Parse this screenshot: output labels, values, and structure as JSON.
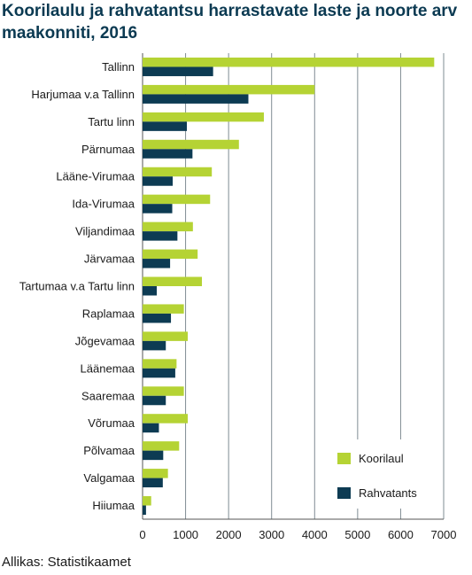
{
  "chart_data": {
    "type": "bar",
    "orientation": "horizontal",
    "title": "Koorilaulu ja rahvatantsu harrastavate laste ja noorte arv maakonniti, 2016",
    "source": "Allikas: Statistikaamet",
    "categories": [
      "Tallinn",
      "Harjumaa v.a Tallinn",
      "Tartu linn",
      "Pärnumaa",
      "Lääne-Virumaa",
      "Ida-Virumaa",
      "Viljandimaa",
      "Järvamaa",
      "Tartumaa v.a Tartu linn",
      "Raplamaa",
      "Jõgevamaa",
      "Läänemaa",
      "Saaremaa",
      "Võrumaa",
      "Põlvamaa",
      "Valgamaa",
      "Hiiumaa"
    ],
    "series": [
      {
        "name": "Koorilaul",
        "color": "#b5d334",
        "values": [
          6780,
          4000,
          2820,
          2240,
          1610,
          1570,
          1170,
          1280,
          1380,
          960,
          1050,
          790,
          960,
          1050,
          850,
          590,
          200
        ]
      },
      {
        "name": "Rahvatants",
        "color": "#0d3b53",
        "values": [
          1640,
          2460,
          1030,
          1160,
          700,
          690,
          810,
          640,
          330,
          660,
          540,
          760,
          540,
          380,
          480,
          470,
          80
        ]
      }
    ],
    "xlim": [
      0,
      7000
    ],
    "xticks": [
      0,
      1000,
      2000,
      3000,
      4000,
      5000,
      6000,
      7000
    ],
    "grid": "vertical",
    "legend_position": "bottom-right"
  }
}
